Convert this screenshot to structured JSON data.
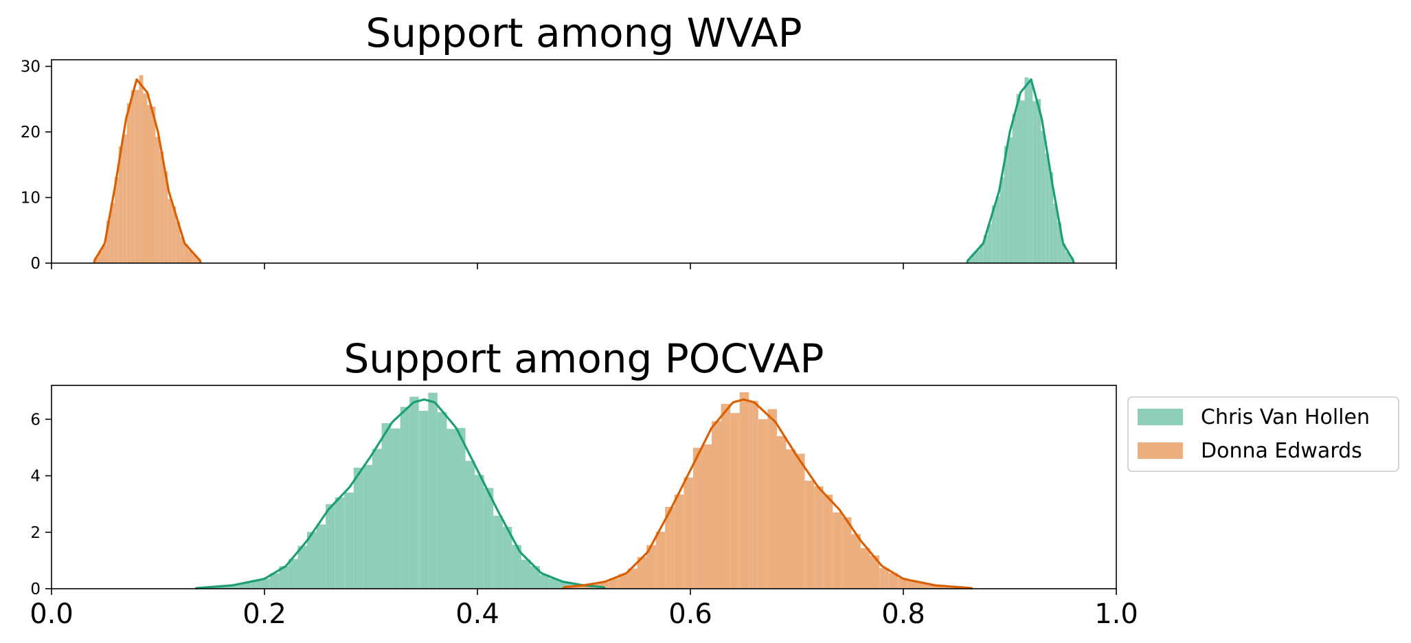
{
  "colors": {
    "van_hollen": "#1b9e77",
    "edwards": "#d95f02"
  },
  "legend": {
    "placement": "right of lower panel",
    "entries": [
      "Chris Van Hollen",
      "Donna Edwards"
    ]
  },
  "chart_data": [
    {
      "type": "histogram+kde",
      "title": "Support among WVAP",
      "xlabel": "",
      "ylabel": "",
      "xlim": [
        0.0,
        1.0
      ],
      "ylim": [
        0,
        31
      ],
      "xticks": [
        0.0,
        0.2,
        0.4,
        0.6,
        0.8,
        1.0
      ],
      "xtick_labels_shown": false,
      "yticks": [
        0,
        10,
        20,
        30
      ],
      "ytick_labels": [
        "0",
        "10",
        "20",
        "30"
      ],
      "grid": false,
      "series": [
        {
          "name": "Chris Van Hollen",
          "color": "#1b9e77",
          "kde": {
            "x": [
              0.86,
              0.875,
              0.89,
              0.9,
              0.91,
              0.92,
              0.93,
              0.94,
              0.95,
              0.96
            ],
            "y": [
              0.3,
              3,
              11,
              20,
              26,
              28,
              22,
              12,
              3,
              0.3
            ]
          }
        },
        {
          "name": "Donna Edwards",
          "color": "#d95f02",
          "kde": {
            "x": [
              0.04,
              0.05,
              0.06,
              0.07,
              0.08,
              0.09,
              0.1,
              0.11,
              0.125,
              0.14
            ],
            "y": [
              0.3,
              3,
              12,
              22,
              28,
              26,
              20,
              11,
              3,
              0.3
            ]
          }
        }
      ]
    },
    {
      "type": "histogram+kde",
      "title": "Support among POCVAP",
      "xlabel": "",
      "ylabel": "",
      "xlim": [
        0.0,
        1.0
      ],
      "ylim": [
        0,
        7.2
      ],
      "xticks": [
        0.0,
        0.2,
        0.4,
        0.6,
        0.8,
        1.0
      ],
      "xtick_labels": [
        "0.0",
        "0.2",
        "0.4",
        "0.6",
        "0.8",
        "1.0"
      ],
      "yticks": [
        0,
        2,
        4,
        6
      ],
      "ytick_labels": [
        "0",
        "2",
        "4",
        "6"
      ],
      "grid": false,
      "series": [
        {
          "name": "Chris Van Hollen",
          "color": "#1b9e77",
          "kde": {
            "x": [
              0.135,
              0.17,
              0.2,
              0.22,
              0.24,
              0.26,
              0.28,
              0.3,
              0.32,
              0.34,
              0.35,
              0.36,
              0.38,
              0.4,
              0.42,
              0.44,
              0.46,
              0.48,
              0.5,
              0.52
            ],
            "y": [
              0.02,
              0.12,
              0.35,
              0.8,
              1.7,
              2.8,
              3.6,
              4.7,
              5.9,
              6.6,
              6.7,
              6.6,
              5.7,
              4.2,
              2.7,
              1.3,
              0.55,
              0.25,
              0.12,
              0.05
            ]
          }
        },
        {
          "name": "Donna Edwards",
          "color": "#d95f02",
          "kde": {
            "x": [
              0.48,
              0.5,
              0.52,
              0.54,
              0.56,
              0.58,
              0.6,
              0.62,
              0.64,
              0.65,
              0.66,
              0.68,
              0.7,
              0.72,
              0.74,
              0.76,
              0.78,
              0.8,
              0.83,
              0.865
            ],
            "y": [
              0.05,
              0.12,
              0.25,
              0.55,
              1.3,
              2.7,
              4.2,
              5.7,
              6.6,
              6.7,
              6.6,
              5.9,
              4.7,
              3.6,
              2.8,
              1.7,
              0.8,
              0.35,
              0.12,
              0.02
            ]
          }
        }
      ]
    }
  ]
}
